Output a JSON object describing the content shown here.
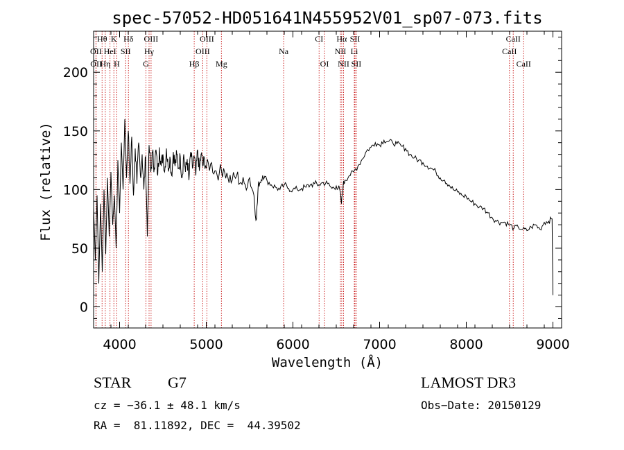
{
  "chart_data": {
    "type": "line",
    "title": "spec-57052-HD051641N455952V01_sp07-073.fits",
    "xlabel": "Wavelength (Å)",
    "ylabel": "Flux (relative)",
    "xlim": [
      3700,
      9100
    ],
    "ylim": [
      -18,
      235
    ],
    "xticks": [
      4000,
      5000,
      6000,
      7000,
      8000,
      9000
    ],
    "yticks": [
      0,
      50,
      100,
      150,
      200
    ],
    "series": [
      {
        "name": "flux",
        "x": [
          3700,
          3720,
          3740,
          3760,
          3780,
          3800,
          3820,
          3840,
          3860,
          3880,
          3900,
          3920,
          3940,
          3960,
          3980,
          4000,
          4020,
          4040,
          4060,
          4080,
          4100,
          4120,
          4140,
          4160,
          4180,
          4200,
          4220,
          4240,
          4260,
          4280,
          4300,
          4320,
          4340,
          4360,
          4380,
          4400,
          4420,
          4440,
          4460,
          4480,
          4500,
          4520,
          4540,
          4560,
          4580,
          4600,
          4620,
          4640,
          4660,
          4680,
          4700,
          4720,
          4740,
          4760,
          4780,
          4800,
          4820,
          4840,
          4860,
          4880,
          4900,
          4920,
          4940,
          4960,
          4980,
          5000,
          5050,
          5100,
          5150,
          5200,
          5250,
          5300,
          5350,
          5400,
          5450,
          5500,
          5550,
          5580,
          5600,
          5620,
          5650,
          5700,
          5750,
          5800,
          5850,
          5900,
          5950,
          6000,
          6050,
          6100,
          6150,
          6200,
          6250,
          6300,
          6350,
          6400,
          6450,
          6500,
          6540,
          6560,
          6580,
          6600,
          6650,
          6700,
          6750,
          6800,
          6850,
          6900,
          6950,
          7000,
          7050,
          7100,
          7150,
          7200,
          7250,
          7300,
          7350,
          7400,
          7450,
          7500,
          7550,
          7600,
          7650,
          7700,
          7750,
          7800,
          7850,
          7900,
          7950,
          8000,
          8050,
          8100,
          8150,
          8200,
          8250,
          8300,
          8350,
          8400,
          8450,
          8500,
          8550,
          8600,
          8650,
          8700,
          8750,
          8800,
          8850,
          8900,
          8950,
          8990,
          9000
        ],
        "values": [
          85,
          40,
          95,
          20,
          88,
          30,
          100,
          45,
          110,
          60,
          115,
          70,
          95,
          50,
          125,
          80,
          140,
          100,
          160,
          110,
          150,
          105,
          145,
          95,
          135,
          105,
          140,
          112,
          130,
          100,
          128,
          60,
          138,
          115,
          132,
          118,
          134,
          112,
          136,
          120,
          130,
          115,
          135,
          118,
          128,
          112,
          132,
          120,
          130,
          118,
          128,
          110,
          130,
          115,
          126,
          108,
          132,
          118,
          128,
          112,
          134,
          116,
          130,
          120,
          126,
          118,
          122,
          116,
          114,
          118,
          110,
          108,
          112,
          106,
          104,
          110,
          95,
          75,
          104,
          106,
          112,
          108,
          104,
          102,
          100,
          104,
          101,
          100,
          100,
          101,
          102,
          104,
          105,
          104,
          106,
          105,
          101,
          103,
          100,
          88,
          104,
          108,
          112,
          115,
          120,
          126,
          133,
          136,
          140,
          138,
          142,
          141,
          140,
          139,
          137,
          135,
          130,
          127,
          125,
          123,
          120,
          118,
          115,
          110,
          108,
          104,
          100,
          98,
          95,
          94,
          90,
          88,
          85,
          84,
          80,
          76,
          73,
          72,
          72,
          70,
          67,
          68,
          66,
          65,
          68,
          70,
          66,
          72,
          73,
          75,
          10
        ]
      }
    ],
    "spectral_lines": [
      {
        "label": "Hθ",
        "x": 3798,
        "row": 0
      },
      {
        "label": "K",
        "x": 3934,
        "row": 0
      },
      {
        "label": "Hδ",
        "x": 4102,
        "row": 0
      },
      {
        "label": "OIII",
        "x": 4363,
        "row": 0
      },
      {
        "label": "OIII",
        "x": 5007,
        "row": 0
      },
      {
        "label": "CI",
        "x": 6302,
        "row": 0
      },
      {
        "label": "Hα",
        "x": 6563,
        "row": 0
      },
      {
        "label": "SII",
        "x": 6716,
        "row": 0
      },
      {
        "label": "CaII",
        "x": 8542,
        "row": 0
      },
      {
        "label": "OII",
        "x": 3727,
        "row": 1
      },
      {
        "label": "HeI",
        "x": 3889,
        "row": 1
      },
      {
        "label": "SII",
        "x": 4070,
        "row": 1
      },
      {
        "label": "Hγ",
        "x": 4340,
        "row": 1
      },
      {
        "label": "OIII",
        "x": 4959,
        "row": 1
      },
      {
        "label": "Na",
        "x": 5893,
        "row": 1
      },
      {
        "label": "NII",
        "x": 6548,
        "row": 1
      },
      {
        "label": "Li",
        "x": 6708,
        "row": 1
      },
      {
        "label": "CaII",
        "x": 8498,
        "row": 1
      },
      {
        "label": "OII",
        "x": 3729,
        "row": 2
      },
      {
        "label": "Hη",
        "x": 3835,
        "row": 2
      },
      {
        "label": "H",
        "x": 3968,
        "row": 2
      },
      {
        "label": "G",
        "x": 4304,
        "row": 2
      },
      {
        "label": "Hβ",
        "x": 4861,
        "row": 2
      },
      {
        "label": "Mg",
        "x": 5175,
        "row": 2
      },
      {
        "label": "OI",
        "x": 6364,
        "row": 2
      },
      {
        "label": "NII",
        "x": 6584,
        "row": 2
      },
      {
        "label": "SII",
        "x": 6731,
        "row": 2
      },
      {
        "label": "CaII",
        "x": 8662,
        "row": 2
      }
    ]
  },
  "info": {
    "class": "STAR",
    "subclass": "G7",
    "survey": "LAMOST DR3",
    "cz": "cz = −36.1 ± 48.1 km/s",
    "obs_date": "Obs−Date: 20150129",
    "radec": "RA =  81.11892, DEC =  44.39502"
  },
  "colors": {
    "line": "#000000",
    "marker": "#cc2222"
  }
}
